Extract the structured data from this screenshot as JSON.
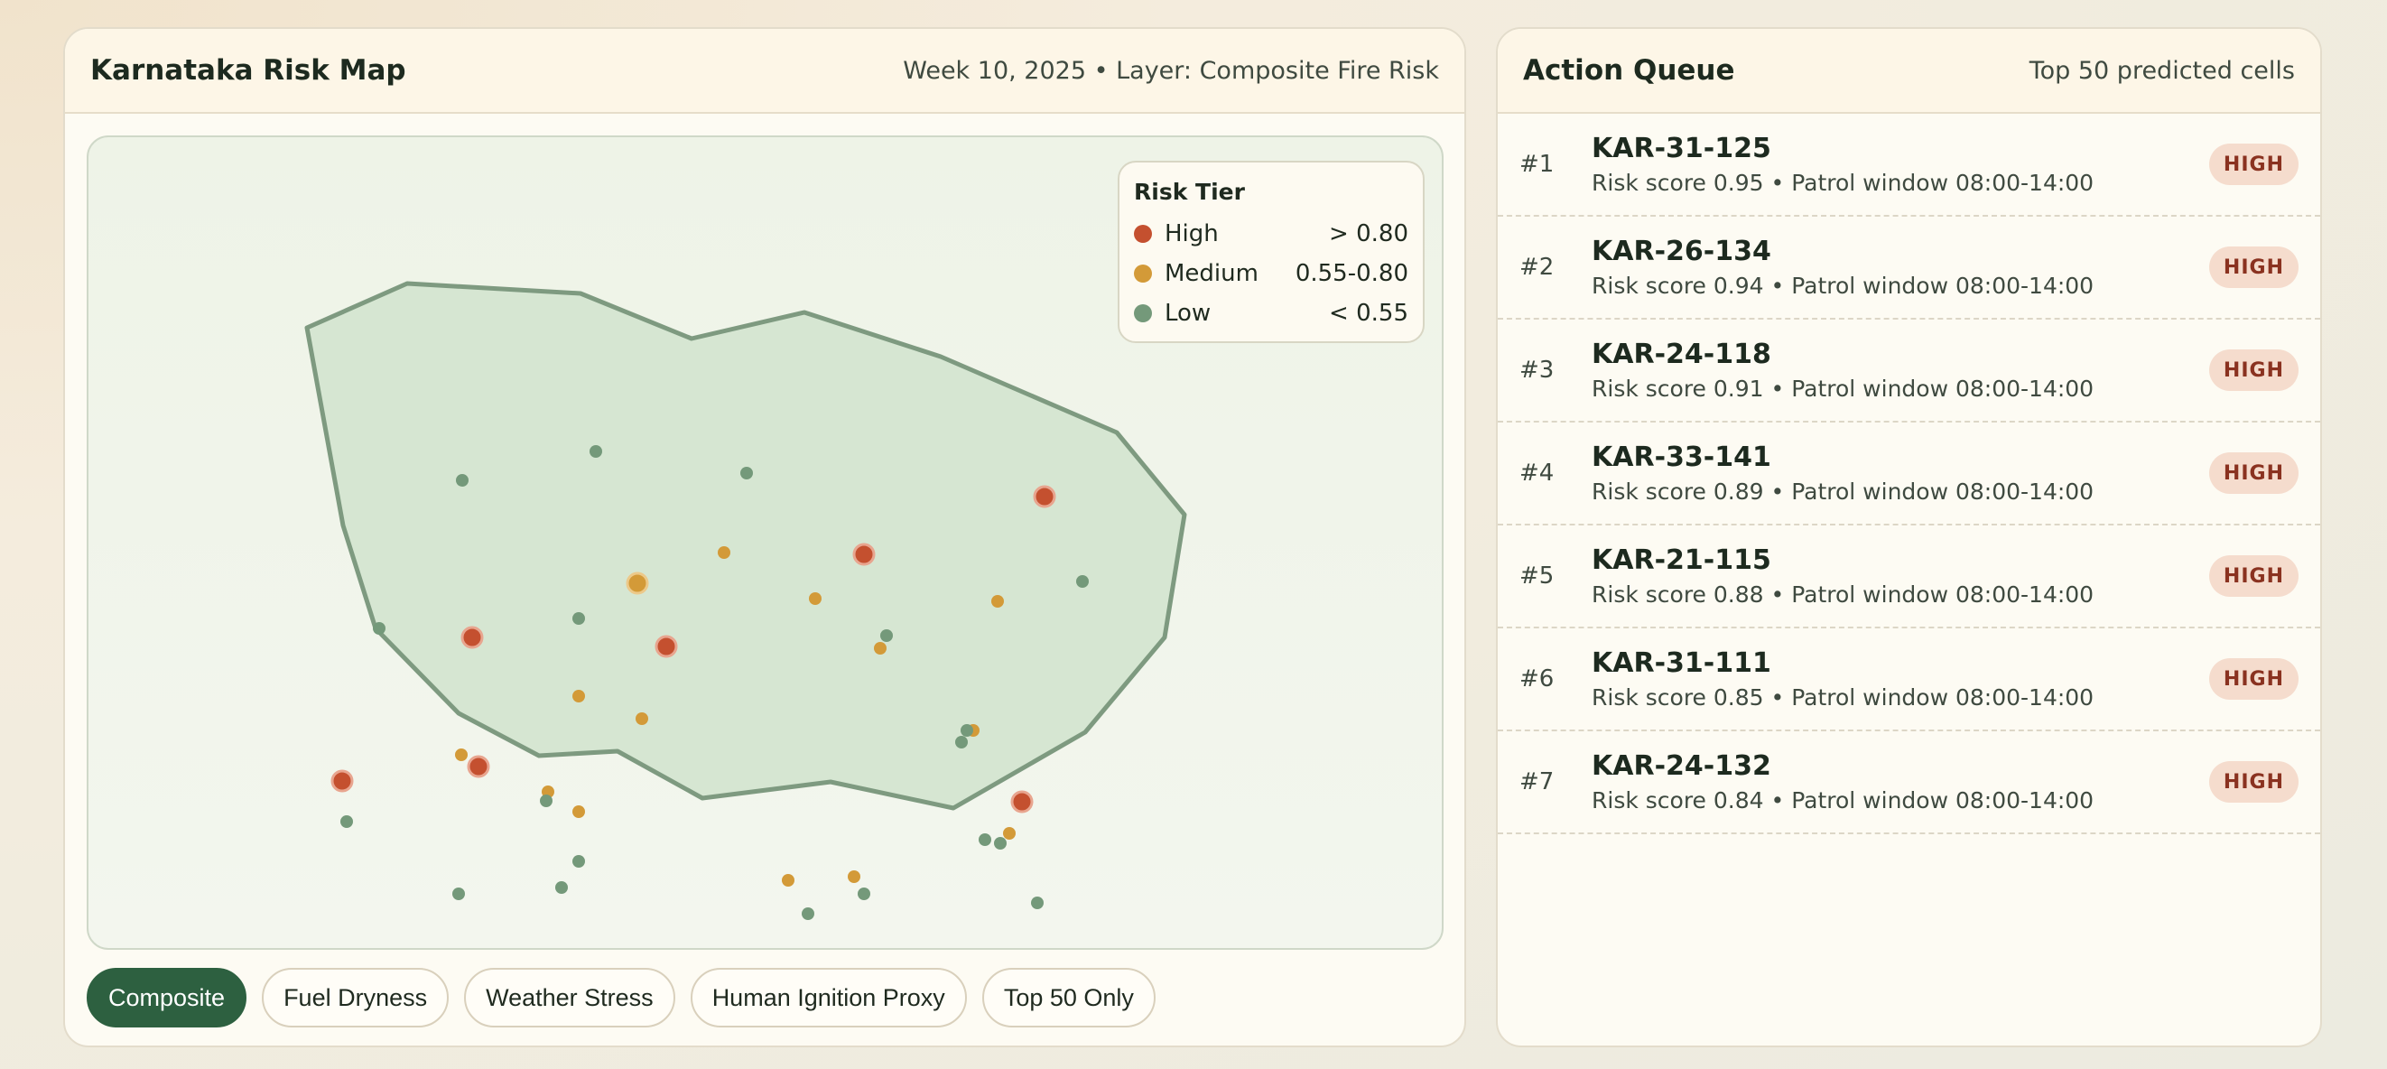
{
  "map_panel": {
    "title": "Karnataka Risk Map",
    "meta": "Week 10, 2025 • Layer: Composite Fire Risk",
    "legend": {
      "title": "Risk Tier",
      "tiers": [
        {
          "label": "High",
          "range": "> 0.80",
          "color": "#c4502f"
        },
        {
          "label": "Medium",
          "range": "0.55-0.80",
          "color": "#d39a38"
        },
        {
          "label": "Low",
          "range": "< 0.55",
          "color": "#74997a"
        }
      ]
    },
    "layers": [
      {
        "label": "Composite",
        "active": true
      },
      {
        "label": "Fuel Dryness",
        "active": false
      },
      {
        "label": "Weather Stress",
        "active": false
      },
      {
        "label": "Human Ignition Proxy",
        "active": false
      },
      {
        "label": "Top 50 Only",
        "active": false
      }
    ]
  },
  "queue_panel": {
    "title": "Action Queue",
    "meta": "Top 50 predicted cells",
    "items": [
      {
        "rank": "#1",
        "id": "KAR-31-125",
        "detail": "Risk score 0.95 • Patrol window 08:00-14:00",
        "badge": "HIGH"
      },
      {
        "rank": "#2",
        "id": "KAR-26-134",
        "detail": "Risk score 0.94 • Patrol window 08:00-14:00",
        "badge": "HIGH"
      },
      {
        "rank": "#3",
        "id": "KAR-24-118",
        "detail": "Risk score 0.91 • Patrol window 08:00-14:00",
        "badge": "HIGH"
      },
      {
        "rank": "#4",
        "id": "KAR-33-141",
        "detail": "Risk score 0.89 • Patrol window 08:00-14:00",
        "badge": "HIGH"
      },
      {
        "rank": "#5",
        "id": "KAR-21-115",
        "detail": "Risk score 0.88 • Patrol window 08:00-14:00",
        "badge": "HIGH"
      },
      {
        "rank": "#6",
        "id": "KAR-31-111",
        "detail": "Risk score 0.85 • Patrol window 08:00-14:00",
        "badge": "HIGH"
      },
      {
        "rank": "#7",
        "id": "KAR-24-132",
        "detail": "Risk score 0.84 • Patrol window 08:00-14:00",
        "badge": "HIGH"
      }
    ]
  },
  "colors": {
    "accent": "#2d6040",
    "region_fill": "#d6e6d2",
    "region_stroke": "#7e9a80",
    "high": "#c4502f",
    "medium": "#d39a38",
    "low": "#74997a"
  }
}
